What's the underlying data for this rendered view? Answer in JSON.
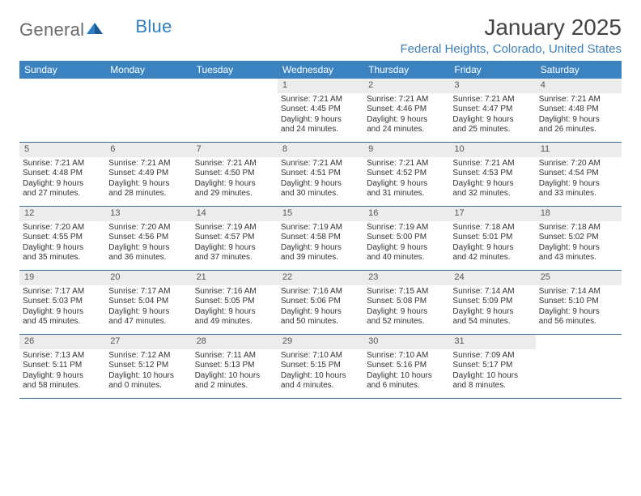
{
  "brand": {
    "text1": "General",
    "text2": "Blue"
  },
  "title": "January 2025",
  "location": "Federal Heights, Colorado, United States",
  "colors": {
    "header_bg": "#3b83c0",
    "header_text": "#ffffff",
    "row_divider": "#3b6b95",
    "daynum_bg": "#ececec",
    "location_text": "#3b7fb8",
    "logo_gray": "#6a6a6a",
    "logo_blue": "#2f7fc1"
  },
  "dayNames": [
    "Sunday",
    "Monday",
    "Tuesday",
    "Wednesday",
    "Thursday",
    "Friday",
    "Saturday"
  ],
  "weeks": [
    [
      {
        "n": "",
        "empty": true
      },
      {
        "n": "",
        "empty": true
      },
      {
        "n": "",
        "empty": true
      },
      {
        "n": "1",
        "sr": "Sunrise: 7:21 AM",
        "ss": "Sunset: 4:45 PM",
        "dl1": "Daylight: 9 hours",
        "dl2": "and 24 minutes."
      },
      {
        "n": "2",
        "sr": "Sunrise: 7:21 AM",
        "ss": "Sunset: 4:46 PM",
        "dl1": "Daylight: 9 hours",
        "dl2": "and 24 minutes."
      },
      {
        "n": "3",
        "sr": "Sunrise: 7:21 AM",
        "ss": "Sunset: 4:47 PM",
        "dl1": "Daylight: 9 hours",
        "dl2": "and 25 minutes."
      },
      {
        "n": "4",
        "sr": "Sunrise: 7:21 AM",
        "ss": "Sunset: 4:48 PM",
        "dl1": "Daylight: 9 hours",
        "dl2": "and 26 minutes."
      }
    ],
    [
      {
        "n": "5",
        "sr": "Sunrise: 7:21 AM",
        "ss": "Sunset: 4:48 PM",
        "dl1": "Daylight: 9 hours",
        "dl2": "and 27 minutes."
      },
      {
        "n": "6",
        "sr": "Sunrise: 7:21 AM",
        "ss": "Sunset: 4:49 PM",
        "dl1": "Daylight: 9 hours",
        "dl2": "and 28 minutes."
      },
      {
        "n": "7",
        "sr": "Sunrise: 7:21 AM",
        "ss": "Sunset: 4:50 PM",
        "dl1": "Daylight: 9 hours",
        "dl2": "and 29 minutes."
      },
      {
        "n": "8",
        "sr": "Sunrise: 7:21 AM",
        "ss": "Sunset: 4:51 PM",
        "dl1": "Daylight: 9 hours",
        "dl2": "and 30 minutes."
      },
      {
        "n": "9",
        "sr": "Sunrise: 7:21 AM",
        "ss": "Sunset: 4:52 PM",
        "dl1": "Daylight: 9 hours",
        "dl2": "and 31 minutes."
      },
      {
        "n": "10",
        "sr": "Sunrise: 7:21 AM",
        "ss": "Sunset: 4:53 PM",
        "dl1": "Daylight: 9 hours",
        "dl2": "and 32 minutes."
      },
      {
        "n": "11",
        "sr": "Sunrise: 7:20 AM",
        "ss": "Sunset: 4:54 PM",
        "dl1": "Daylight: 9 hours",
        "dl2": "and 33 minutes."
      }
    ],
    [
      {
        "n": "12",
        "sr": "Sunrise: 7:20 AM",
        "ss": "Sunset: 4:55 PM",
        "dl1": "Daylight: 9 hours",
        "dl2": "and 35 minutes."
      },
      {
        "n": "13",
        "sr": "Sunrise: 7:20 AM",
        "ss": "Sunset: 4:56 PM",
        "dl1": "Daylight: 9 hours",
        "dl2": "and 36 minutes."
      },
      {
        "n": "14",
        "sr": "Sunrise: 7:19 AM",
        "ss": "Sunset: 4:57 PM",
        "dl1": "Daylight: 9 hours",
        "dl2": "and 37 minutes."
      },
      {
        "n": "15",
        "sr": "Sunrise: 7:19 AM",
        "ss": "Sunset: 4:58 PM",
        "dl1": "Daylight: 9 hours",
        "dl2": "and 39 minutes."
      },
      {
        "n": "16",
        "sr": "Sunrise: 7:19 AM",
        "ss": "Sunset: 5:00 PM",
        "dl1": "Daylight: 9 hours",
        "dl2": "and 40 minutes."
      },
      {
        "n": "17",
        "sr": "Sunrise: 7:18 AM",
        "ss": "Sunset: 5:01 PM",
        "dl1": "Daylight: 9 hours",
        "dl2": "and 42 minutes."
      },
      {
        "n": "18",
        "sr": "Sunrise: 7:18 AM",
        "ss": "Sunset: 5:02 PM",
        "dl1": "Daylight: 9 hours",
        "dl2": "and 43 minutes."
      }
    ],
    [
      {
        "n": "19",
        "sr": "Sunrise: 7:17 AM",
        "ss": "Sunset: 5:03 PM",
        "dl1": "Daylight: 9 hours",
        "dl2": "and 45 minutes."
      },
      {
        "n": "20",
        "sr": "Sunrise: 7:17 AM",
        "ss": "Sunset: 5:04 PM",
        "dl1": "Daylight: 9 hours",
        "dl2": "and 47 minutes."
      },
      {
        "n": "21",
        "sr": "Sunrise: 7:16 AM",
        "ss": "Sunset: 5:05 PM",
        "dl1": "Daylight: 9 hours",
        "dl2": "and 49 minutes."
      },
      {
        "n": "22",
        "sr": "Sunrise: 7:16 AM",
        "ss": "Sunset: 5:06 PM",
        "dl1": "Daylight: 9 hours",
        "dl2": "and 50 minutes."
      },
      {
        "n": "23",
        "sr": "Sunrise: 7:15 AM",
        "ss": "Sunset: 5:08 PM",
        "dl1": "Daylight: 9 hours",
        "dl2": "and 52 minutes."
      },
      {
        "n": "24",
        "sr": "Sunrise: 7:14 AM",
        "ss": "Sunset: 5:09 PM",
        "dl1": "Daylight: 9 hours",
        "dl2": "and 54 minutes."
      },
      {
        "n": "25",
        "sr": "Sunrise: 7:14 AM",
        "ss": "Sunset: 5:10 PM",
        "dl1": "Daylight: 9 hours",
        "dl2": "and 56 minutes."
      }
    ],
    [
      {
        "n": "26",
        "sr": "Sunrise: 7:13 AM",
        "ss": "Sunset: 5:11 PM",
        "dl1": "Daylight: 9 hours",
        "dl2": "and 58 minutes."
      },
      {
        "n": "27",
        "sr": "Sunrise: 7:12 AM",
        "ss": "Sunset: 5:12 PM",
        "dl1": "Daylight: 10 hours",
        "dl2": "and 0 minutes."
      },
      {
        "n": "28",
        "sr": "Sunrise: 7:11 AM",
        "ss": "Sunset: 5:13 PM",
        "dl1": "Daylight: 10 hours",
        "dl2": "and 2 minutes."
      },
      {
        "n": "29",
        "sr": "Sunrise: 7:10 AM",
        "ss": "Sunset: 5:15 PM",
        "dl1": "Daylight: 10 hours",
        "dl2": "and 4 minutes."
      },
      {
        "n": "30",
        "sr": "Sunrise: 7:10 AM",
        "ss": "Sunset: 5:16 PM",
        "dl1": "Daylight: 10 hours",
        "dl2": "and 6 minutes."
      },
      {
        "n": "31",
        "sr": "Sunrise: 7:09 AM",
        "ss": "Sunset: 5:17 PM",
        "dl1": "Daylight: 10 hours",
        "dl2": "and 8 minutes."
      },
      {
        "n": "",
        "empty": true
      }
    ]
  ]
}
